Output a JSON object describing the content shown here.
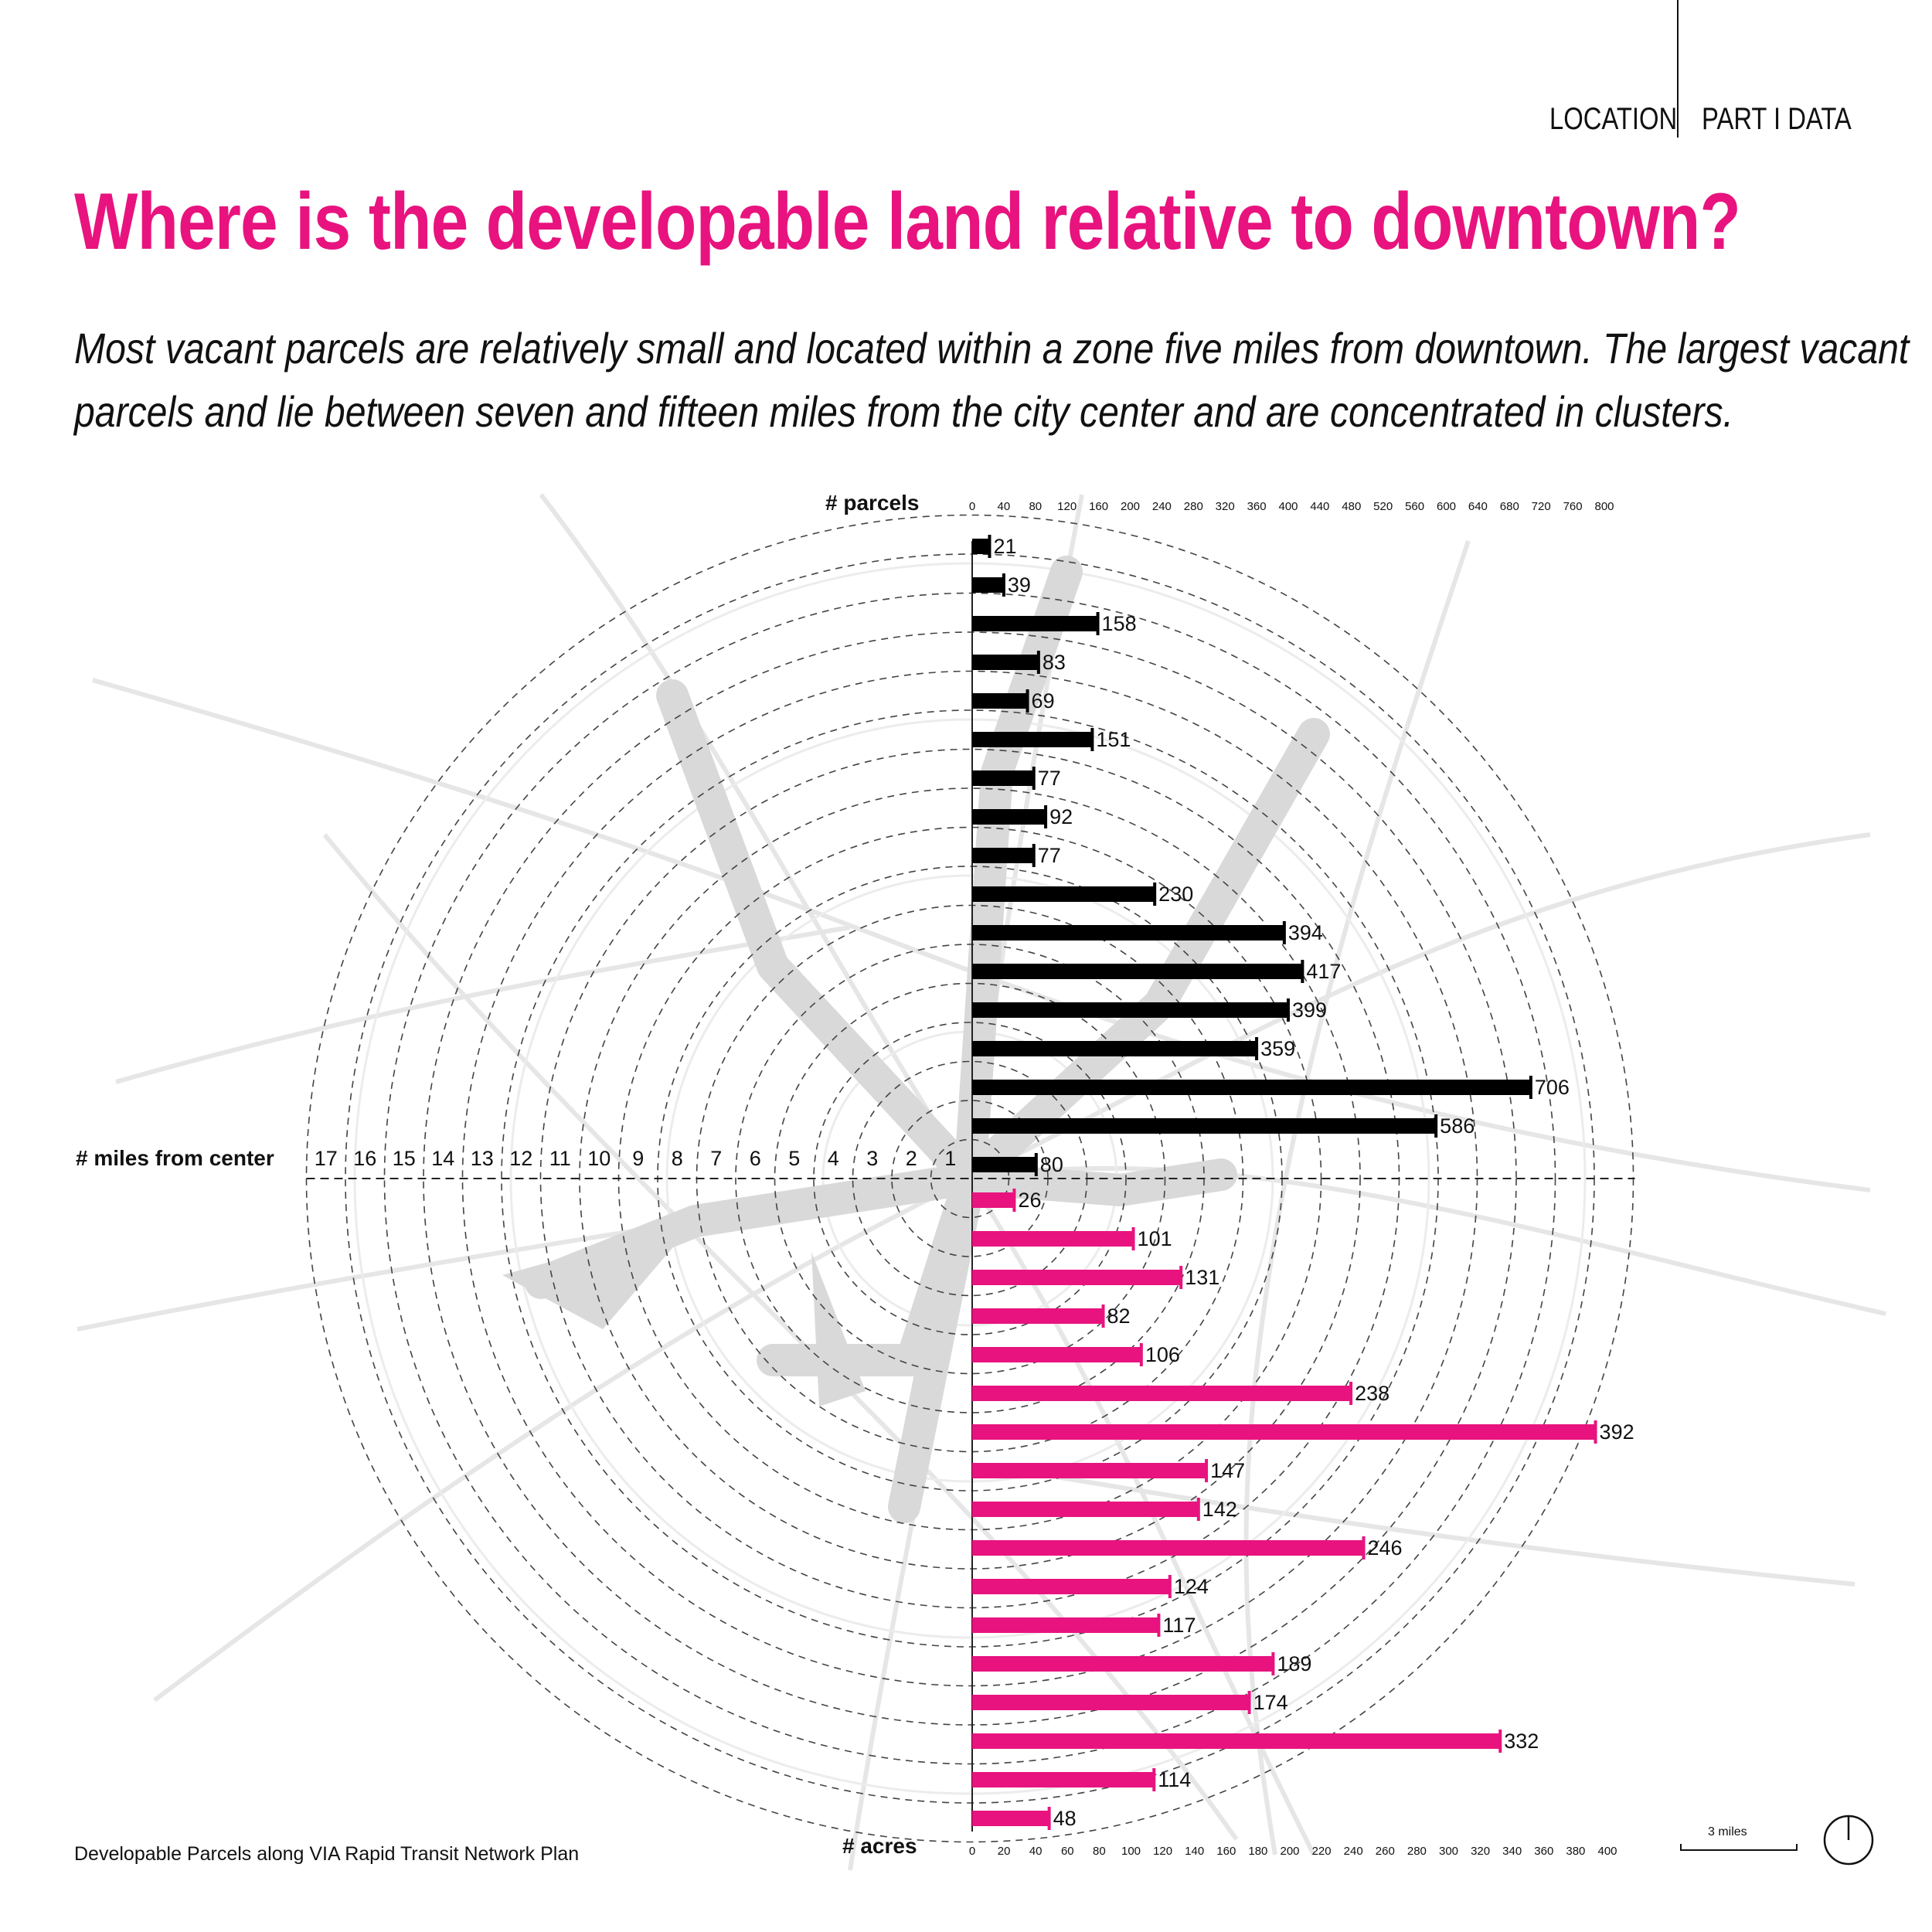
{
  "header": {
    "section": "LOCATION",
    "part": "PART I DATA"
  },
  "title": "Where is the developable land relative to downtown?",
  "subtitle": {
    "line1": "Most vacant parcels are relatively small and located within a zone five miles from downtown. The largest vacant",
    "line2": "parcels and lie between seven and fifteen miles from the city center and are concentrated in clusters."
  },
  "caption": "Developable Parcels along VIA Rapid Transit Network Plan",
  "scale_bar_label": "3 miles",
  "colors": {
    "parcels": "#000000",
    "acres": "#e8137e",
    "accent": "#e8137e",
    "map": "#d9d9d9"
  },
  "chart_data": {
    "type": "bar",
    "xlabel": "# miles from center",
    "rings": [
      "17",
      "16",
      "15",
      "14",
      "13",
      "12",
      "11",
      "10",
      "9",
      "8",
      "7",
      "6",
      "5",
      "4",
      "3",
      "2",
      "1"
    ],
    "parcels": {
      "label": "# parcels",
      "axis_ticks": [
        "0",
        "40",
        "80",
        "120",
        "160",
        "200",
        "240",
        "280",
        "320",
        "360",
        "400",
        "440",
        "480",
        "520",
        "560",
        "600",
        "640",
        "680",
        "720",
        "760",
        "800"
      ],
      "xlim": [
        0,
        800
      ],
      "miles": [
        17,
        16,
        15,
        14,
        13,
        12,
        11,
        10,
        9,
        8,
        7,
        6,
        5,
        4,
        3,
        2,
        1
      ],
      "values": [
        21,
        39,
        158,
        83,
        69,
        151,
        77,
        92,
        77,
        230,
        394,
        417,
        399,
        359,
        706,
        586,
        80
      ],
      "labels": [
        "21",
        "39",
        "158",
        "83",
        "69",
        "151",
        "77",
        "92",
        "77",
        "230",
        "394",
        "417",
        "399",
        "359",
        "706",
        "586",
        "80"
      ]
    },
    "acres": {
      "label": "# acres",
      "axis_ticks": [
        "0",
        "20",
        "40",
        "60",
        "80",
        "100",
        "120",
        "140",
        "160",
        "180",
        "200",
        "220",
        "240",
        "260",
        "280",
        "300",
        "320",
        "340",
        "360",
        "380",
        "400"
      ],
      "xlim": [
        0,
        400
      ],
      "miles": [
        1,
        2,
        3,
        4,
        5,
        6,
        7,
        8,
        9,
        10,
        11,
        12,
        13,
        14,
        15,
        16,
        17
      ],
      "values": [
        26,
        101,
        131,
        82,
        106,
        238,
        392,
        147,
        142,
        246,
        124,
        117,
        189,
        174,
        332,
        114,
        48
      ],
      "labels": [
        "26",
        "101",
        "131",
        "82",
        "106",
        "238",
        "392",
        "147",
        "142",
        "246",
        "124",
        "117",
        "189",
        "174",
        "332",
        "114",
        "48"
      ]
    }
  }
}
